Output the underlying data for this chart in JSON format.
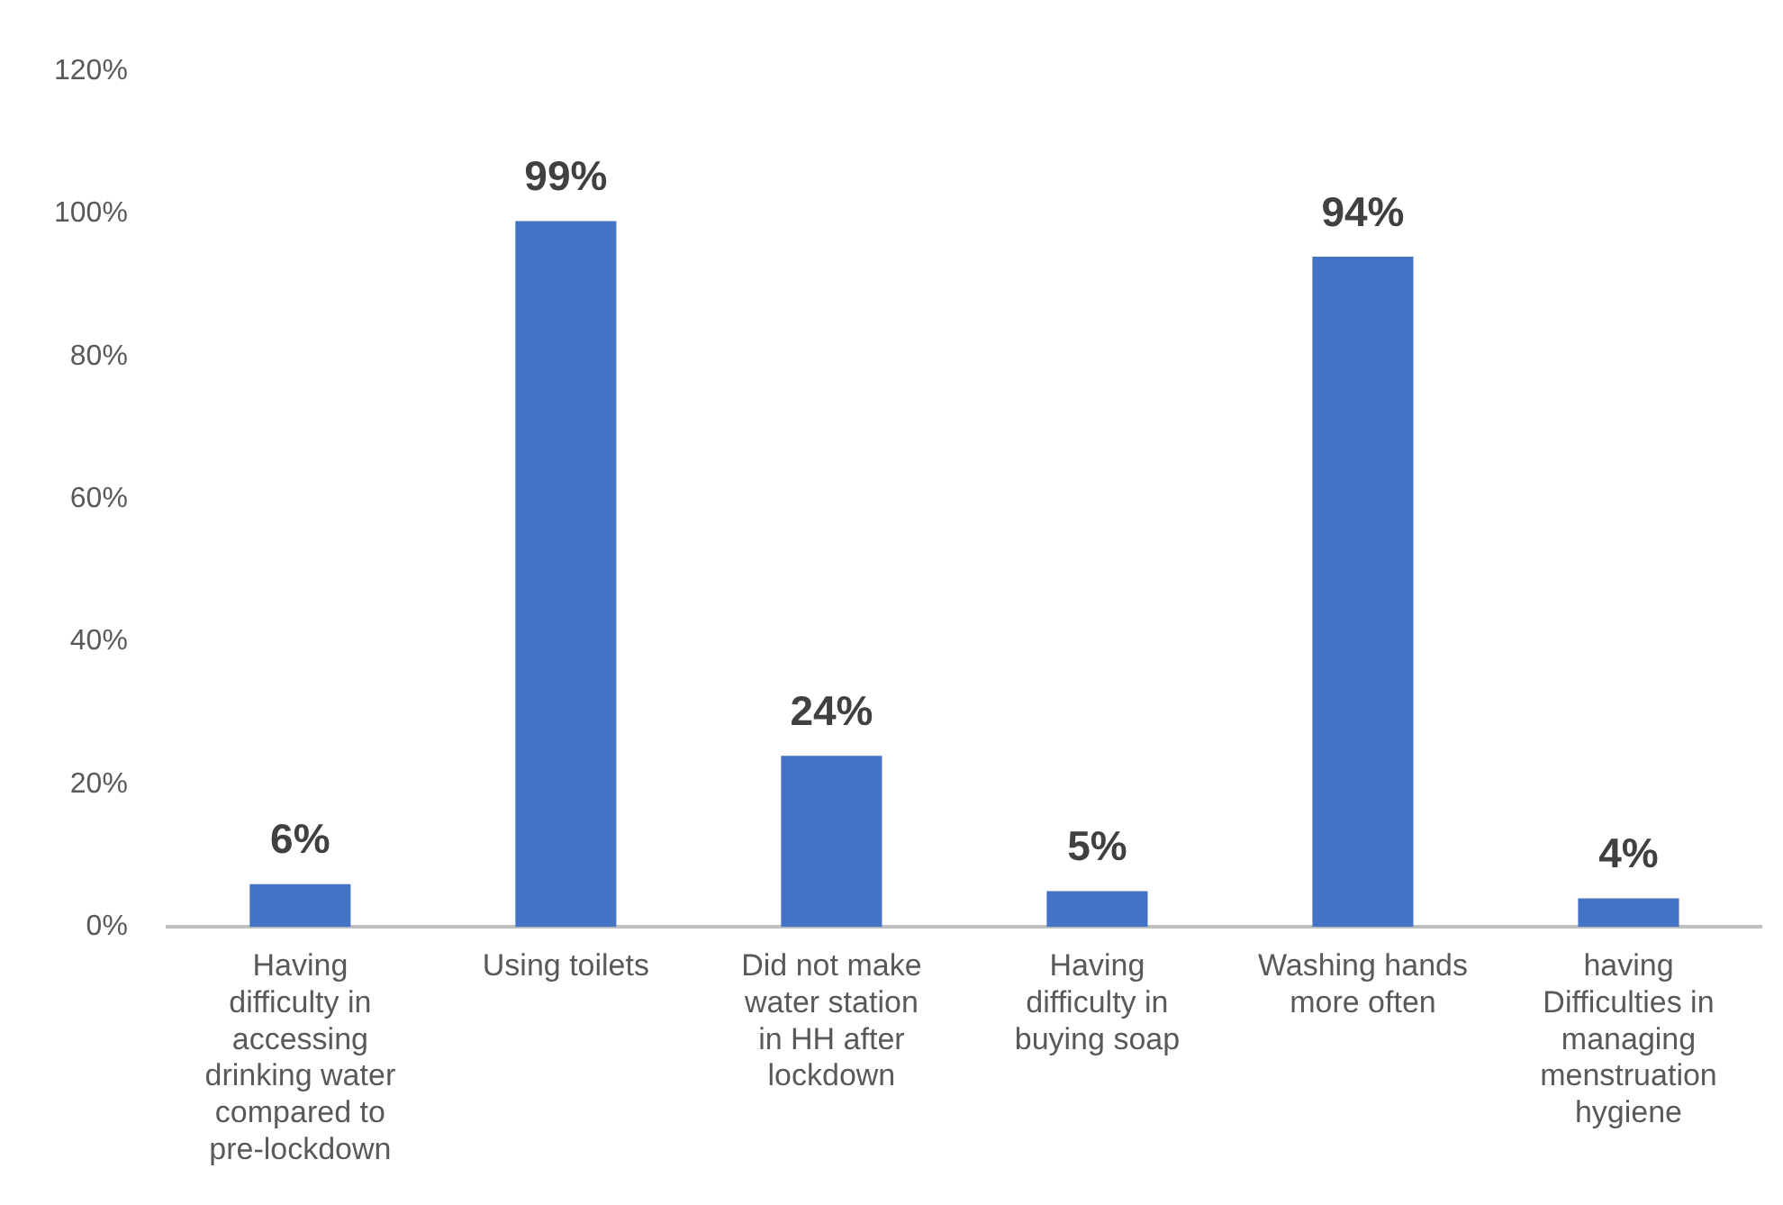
{
  "chart_data": {
    "type": "bar",
    "categories": [
      "Having difficulty in accessing drinking water compared to pre-lockdown",
      "Using toilets",
      "Did not make water station in HH after lockdown",
      "Having difficulty in buying soap",
      "Washing hands more often",
      "having Difficulties in managing menstruation hygiene"
    ],
    "values": [
      6,
      99,
      24,
      5,
      94,
      4
    ],
    "value_labels": [
      "6%",
      "99%",
      "24%",
      "5%",
      "94%",
      "4%"
    ],
    "color": "#4472c4",
    "ylim": [
      0,
      120
    ],
    "yticks": [
      {
        "value": 0,
        "label": "0%"
      },
      {
        "value": 20,
        "label": "20%"
      },
      {
        "value": 40,
        "label": "40%"
      },
      {
        "value": 60,
        "label": "60%"
      },
      {
        "value": 80,
        "label": "80%"
      },
      {
        "value": 100,
        "label": "100%"
      },
      {
        "value": 120,
        "label": "120%"
      }
    ],
    "grid": false,
    "legend": false
  }
}
